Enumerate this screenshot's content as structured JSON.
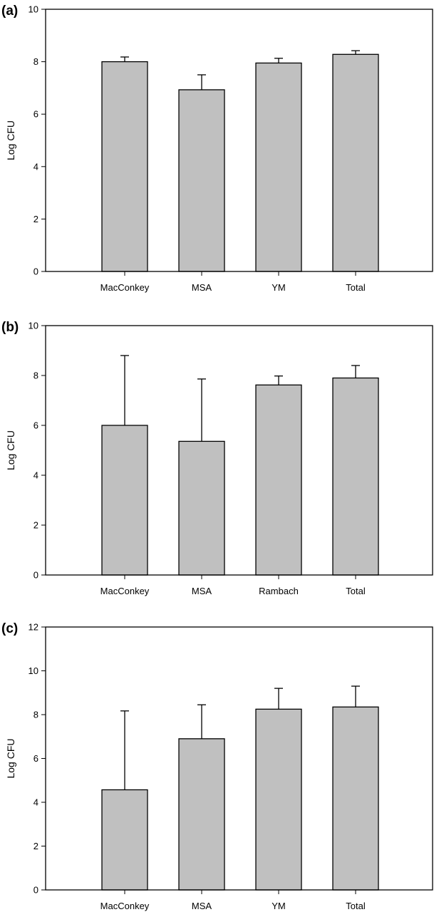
{
  "chart_data": [
    {
      "type": "bar",
      "panel_label": "(a)",
      "categories": [
        "MacConkey",
        "MSA",
        "YM",
        "Total"
      ],
      "values": [
        8.0,
        6.93,
        7.95,
        8.28
      ],
      "errors": [
        0.18,
        0.57,
        0.18,
        0.14
      ],
      "ylabel": "Log CFU",
      "ylim": [
        0,
        10
      ],
      "yticks": [
        0,
        2,
        4,
        6,
        8,
        10
      ],
      "bar_color": "#c0c0c0"
    },
    {
      "type": "bar",
      "panel_label": "(b)",
      "categories": [
        "MacConkey",
        "MSA",
        "Rambach",
        "Total"
      ],
      "values": [
        6.0,
        5.36,
        7.62,
        7.9
      ],
      "errors": [
        2.8,
        2.5,
        0.36,
        0.5
      ],
      "ylabel": "Log CFU",
      "ylim": [
        0,
        10
      ],
      "yticks": [
        0,
        2,
        4,
        6,
        8,
        10
      ],
      "bar_color": "#c0c0c0"
    },
    {
      "type": "bar",
      "panel_label": "(c)",
      "categories": [
        "MacConkey",
        "MSA",
        "YM",
        "Total"
      ],
      "values": [
        4.57,
        6.9,
        8.25,
        8.35
      ],
      "errors": [
        3.6,
        1.55,
        0.95,
        0.95
      ],
      "ylabel": "Log CFU",
      "ylim": [
        0,
        12
      ],
      "yticks": [
        0,
        2,
        4,
        6,
        8,
        10,
        12
      ],
      "bar_color": "#c0c0c0"
    }
  ]
}
